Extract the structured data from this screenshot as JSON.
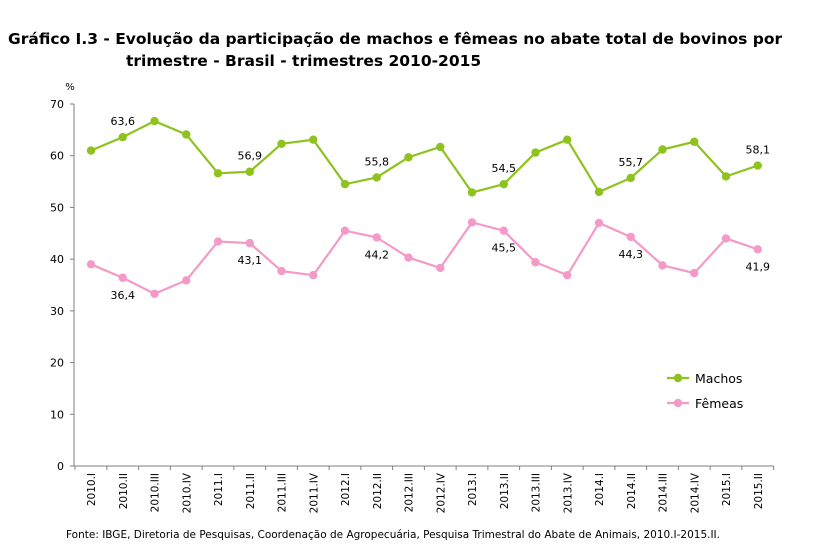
{
  "title": {
    "line1": "Gráfico I.3 - Evolução da participação de machos e fêmeas no abate total de bovinos por",
    "line2": "trimestre - Brasil - trimestres 2010-2015"
  },
  "source": "Fonte: IBGE, Diretoria de Pesquisas, Coordenação de Agropecuária, Pesquisa Trimestral do Abate de Animais, 2010.I-2015.II.",
  "chart_data": {
    "type": "line",
    "unit_label": "%",
    "ylim": [
      0,
      70
    ],
    "yticks": [
      0,
      10,
      20,
      30,
      40,
      50,
      60,
      70
    ],
    "grid": false,
    "legend_position": "right-lower",
    "categories": [
      "2010.I",
      "2010.II",
      "2010.III",
      "2010.IV",
      "2011.I",
      "2011.II",
      "2011.III",
      "2011.IV",
      "2012.I",
      "2012.II",
      "2012.III",
      "2012.IV",
      "2013.I",
      "2013.II",
      "2013.III",
      "2013.IV",
      "2014.I",
      "2014.II",
      "2014.III",
      "2014.IV",
      "2015.I",
      "2015.II"
    ],
    "series": [
      {
        "name": "Machos",
        "color": "#8dc21f",
        "values": [
          61.0,
          63.6,
          66.7,
          64.1,
          56.6,
          56.9,
          62.3,
          63.1,
          54.5,
          55.8,
          59.7,
          61.7,
          52.9,
          54.5,
          60.6,
          63.1,
          53.0,
          55.7,
          61.2,
          62.7,
          56.0,
          58.1
        ],
        "labels": [
          {
            "index": 1,
            "text": "63,6",
            "pos": "above"
          },
          {
            "index": 5,
            "text": "56,9",
            "pos": "above"
          },
          {
            "index": 9,
            "text": "55,8",
            "pos": "above"
          },
          {
            "index": 13,
            "text": "54,5",
            "pos": "above"
          },
          {
            "index": 17,
            "text": "55,7",
            "pos": "above"
          },
          {
            "index": 21,
            "text": "58,1",
            "pos": "above"
          }
        ]
      },
      {
        "name": "Fêmeas",
        "color": "#f49ac9",
        "values": [
          39.0,
          36.4,
          33.3,
          35.9,
          43.4,
          43.1,
          37.7,
          36.9,
          45.5,
          44.2,
          40.3,
          38.3,
          47.1,
          45.5,
          39.4,
          36.9,
          47.0,
          44.3,
          38.8,
          37.3,
          44.0,
          41.9
        ],
        "labels": [
          {
            "index": 1,
            "text": "36,4",
            "pos": "below"
          },
          {
            "index": 5,
            "text": "43,1",
            "pos": "below"
          },
          {
            "index": 9,
            "text": "44,2",
            "pos": "below"
          },
          {
            "index": 13,
            "text": "45,5",
            "pos": "below"
          },
          {
            "index": 17,
            "text": "44,3",
            "pos": "below"
          },
          {
            "index": 21,
            "text": "41,9",
            "pos": "below"
          }
        ]
      }
    ]
  }
}
